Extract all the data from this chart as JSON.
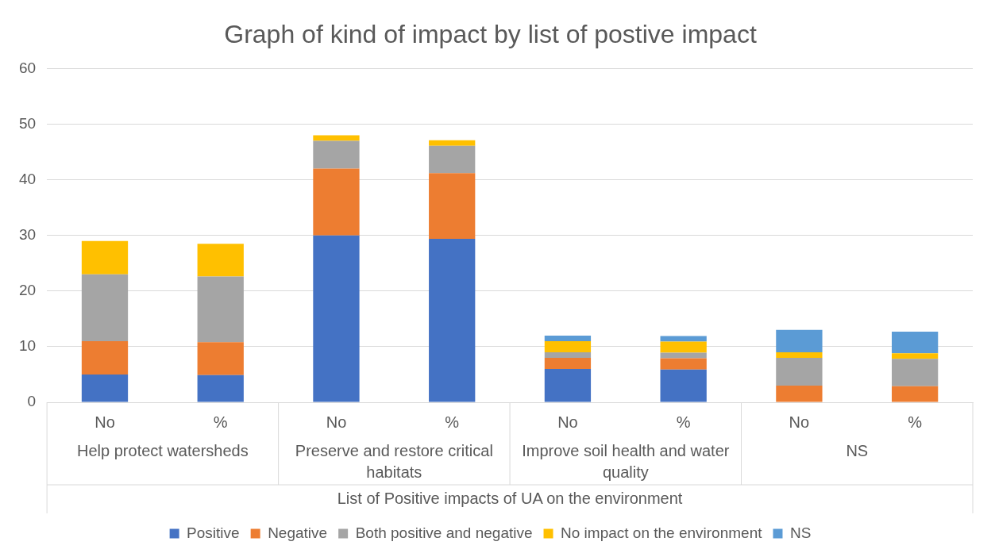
{
  "chart_data": {
    "type": "bar",
    "stacked": true,
    "title": "Graph of kind of impact by list of postive impact",
    "xlabel": "List of Positive impacts of UA on the environment",
    "categories": [
      "No",
      "%",
      "No",
      "%",
      "No",
      "%",
      "No",
      "%"
    ],
    "annotations": [
      "Help protect watersheds",
      "Preserve and restore critical habitats",
      "Improve soil health and water quality",
      "NS"
    ],
    "series": [
      {
        "name": "Positive",
        "color": "#4472c4",
        "values": [
          5,
          4.9,
          30,
          29.4,
          6,
          5.9,
          0,
          0
        ]
      },
      {
        "name": "Negative",
        "color": "#ed7d31",
        "values": [
          6,
          5.9,
          12,
          11.8,
          2,
          2.0,
          3,
          2.9
        ]
      },
      {
        "name": "Both positive and negative",
        "color": "#a5a5a5",
        "values": [
          12,
          11.8,
          5,
          4.9,
          1,
          1.0,
          5,
          4.9
        ]
      },
      {
        "name": "No impact on the environment",
        "color": "#ffc000",
        "values": [
          6,
          5.9,
          1,
          1.0,
          2,
          2.0,
          1,
          1.0
        ]
      },
      {
        "name": "NS",
        "color": "#5b9bd5",
        "values": [
          0,
          0,
          0,
          0,
          1,
          1.0,
          4,
          3.9
        ]
      }
    ],
    "ylim": [
      0,
      60
    ],
    "yticks": [
      0,
      10,
      20,
      30,
      40,
      50,
      60
    ],
    "grid": "y",
    "legend": "bottom"
  }
}
